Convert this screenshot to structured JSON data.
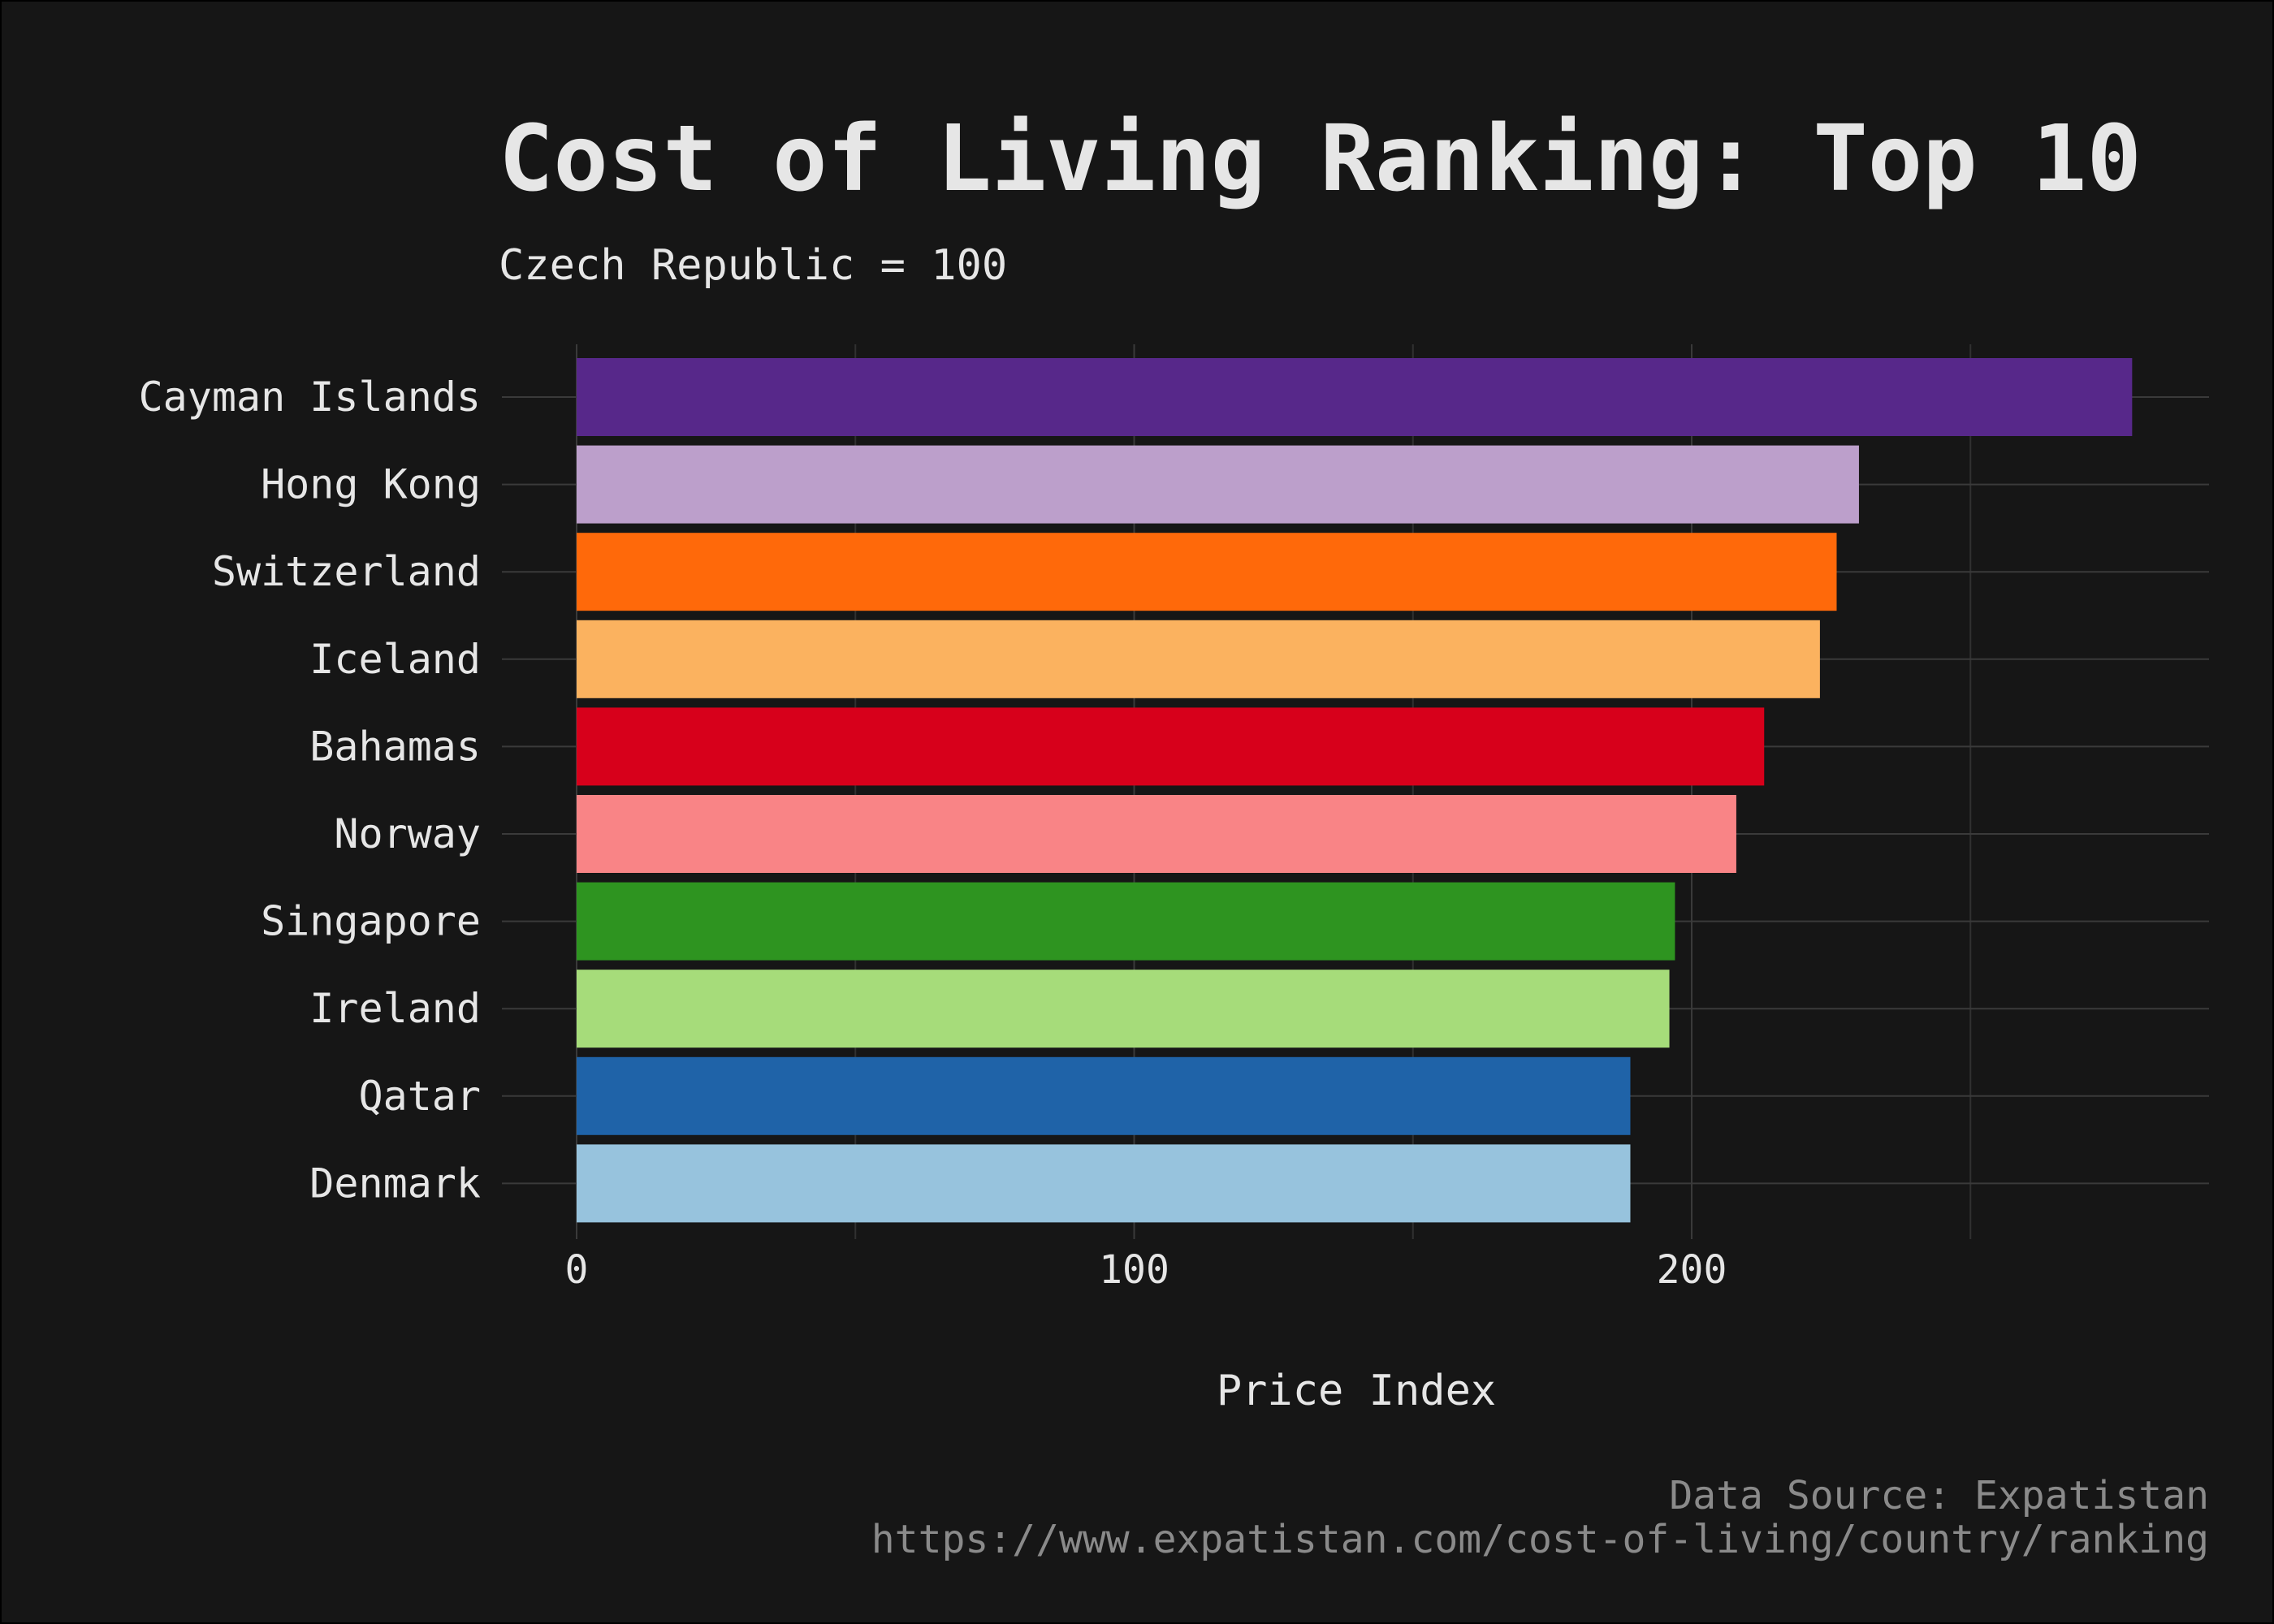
{
  "chart_data": {
    "type": "bar",
    "orientation": "horizontal",
    "title": "Cost of Living Ranking: Top 10",
    "subtitle": "Czech Republic = 100",
    "xlabel": "Price Index",
    "ylabel": "",
    "xlim": [
      0,
      292
    ],
    "x_ticks": [
      0,
      100,
      200
    ],
    "x_ticks_labels": [
      "0",
      "100",
      "200"
    ],
    "grid": true,
    "categories": [
      "Cayman Islands",
      "Hong Kong",
      "Switzerland",
      "Iceland",
      "Bahamas",
      "Norway",
      "Singapore",
      "Ireland",
      "Qatar",
      "Denmark"
    ],
    "values": [
      279,
      230,
      226,
      223,
      213,
      208,
      197,
      196,
      189,
      189
    ],
    "colors": [
      "#57288a",
      "#bc9fcb",
      "#ff690a",
      "#fbb25f",
      "#d7001b",
      "#f98486",
      "#2e9420",
      "#a6dc7a",
      "#1f63a8",
      "#97c3dd"
    ],
    "caption": [
      "Data Source: Expatistan",
      "https://www.expatistan.com/cost-of-living/country/ranking"
    ]
  }
}
